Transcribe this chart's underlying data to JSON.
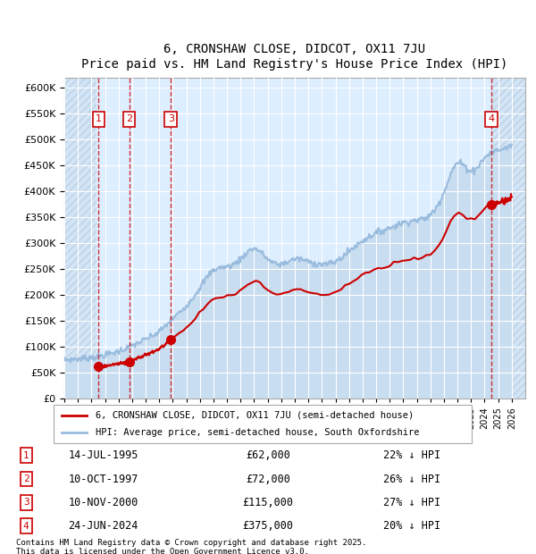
{
  "title": "6, CRONSHAW CLOSE, DIDCOT, OX11 7JU",
  "subtitle": "Price paid vs. HM Land Registry's House Price Index (HPI)",
  "ylabel": "",
  "ylim": [
    0,
    620000
  ],
  "yticks": [
    0,
    50000,
    100000,
    150000,
    200000,
    250000,
    300000,
    350000,
    400000,
    450000,
    500000,
    550000,
    600000
  ],
  "xlim_start": 1993.0,
  "xlim_end": 2027.0,
  "hpi_color": "#aaccee",
  "price_color": "#cc0000",
  "hatch_color": "#ccddee",
  "bg_color": "#ddeeff",
  "purchases": [
    {
      "num": 1,
      "date_x": 1995.53,
      "price": 62000,
      "label": "14-JUL-1995",
      "amount": "£62,000",
      "pct": "22% ↓ HPI"
    },
    {
      "num": 2,
      "date_x": 1997.78,
      "price": 72000,
      "label": "10-OCT-1997",
      "amount": "£72,000",
      "pct": "26% ↓ HPI"
    },
    {
      "num": 3,
      "date_x": 2000.86,
      "price": 115000,
      "label": "10-NOV-2000",
      "amount": "£115,000",
      "pct": "27% ↓ HPI"
    },
    {
      "num": 4,
      "date_x": 2024.48,
      "price": 375000,
      "label": "24-JUN-2024",
      "amount": "£375,000",
      "pct": "20% ↓ HPI"
    }
  ],
  "legend_line1": "6, CRONSHAW CLOSE, DIDCOT, OX11 7JU (semi-detached house)",
  "legend_line2": "HPI: Average price, semi-detached house, South Oxfordshire",
  "footer": "Contains HM Land Registry data © Crown copyright and database right 2025.\nThis data is licensed under the Open Government Licence v3.0."
}
